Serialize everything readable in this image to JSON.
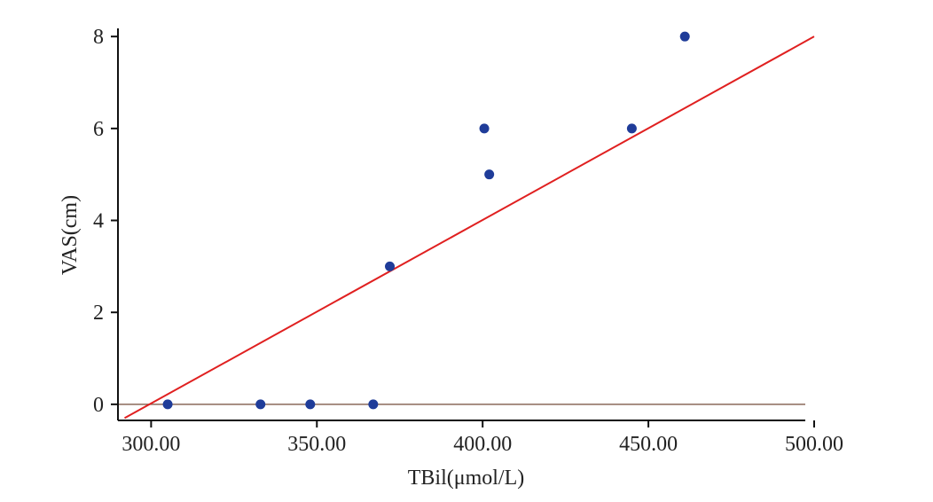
{
  "chart_data": {
    "type": "scatter",
    "title": "",
    "xlabel": "TBil(μmol/L)",
    "ylabel": "VAS(cm)",
    "xlim": [
      290,
      500
    ],
    "ylim": [
      -0.35,
      8.1
    ],
    "x_ticks": [
      300,
      350,
      400,
      450,
      500
    ],
    "x_tick_labels": [
      "300.00",
      "350.00",
      "400.00",
      "450.00",
      "500.00"
    ],
    "y_ticks": [
      0,
      2,
      4,
      6,
      8
    ],
    "y_tick_labels": [
      "0",
      "2",
      "4",
      "6",
      "8"
    ],
    "grid": false,
    "reference_line_y": 0,
    "series": [
      {
        "points": [
          {
            "x": 305,
            "y": 0
          },
          {
            "x": 333,
            "y": 0
          },
          {
            "x": 348,
            "y": 0
          },
          {
            "x": 367,
            "y": 0
          },
          {
            "x": 372,
            "y": 3
          },
          {
            "x": 400.5,
            "y": 6
          },
          {
            "x": 402,
            "y": 5
          },
          {
            "x": 445,
            "y": 6
          },
          {
            "x": 461,
            "y": 8
          }
        ],
        "color": "#1f3c99"
      }
    ],
    "fit_line": {
      "x": [
        292,
        500
      ],
      "y": [
        -0.3,
        8.0
      ],
      "color": "#e02020"
    },
    "zero_line_color": "#8a6a5a"
  }
}
